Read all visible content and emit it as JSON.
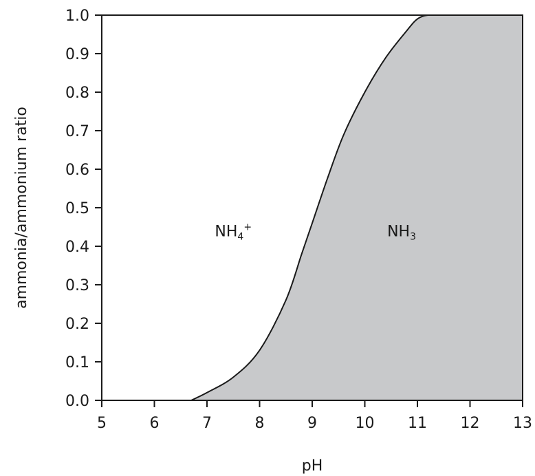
{
  "chart_data": {
    "type": "area",
    "xlabel": "pH",
    "ylabel": "ammonia/ammonium ratio",
    "xlim": [
      5,
      13
    ],
    "ylim": [
      0.0,
      1.0
    ],
    "x_ticks": [
      "5",
      "6",
      "7",
      "8",
      "9",
      "10",
      "11",
      "12",
      "13"
    ],
    "y_ticks": [
      "0.0",
      "0.1",
      "0.2",
      "0.3",
      "0.4",
      "0.5",
      "0.6",
      "0.7",
      "0.8",
      "0.9",
      "1.0"
    ],
    "grid": false,
    "series": [
      {
        "x": [
          6.7,
          7.0,
          7.5,
          8.0,
          8.5,
          8.8,
          9.0,
          9.3,
          9.6,
          10.0,
          10.4,
          10.8,
          11.0,
          11.2,
          11.5,
          12.0,
          13.0
        ],
        "y": [
          0.0,
          0.02,
          0.06,
          0.13,
          0.26,
          0.38,
          0.46,
          0.58,
          0.69,
          0.8,
          0.89,
          0.96,
          0.99,
          1.0,
          1.0,
          1.0,
          1.0
        ]
      }
    ],
    "fill_color": "#c8c9cb",
    "line_color": "#1a1a1a",
    "annotations": [
      {
        "base": "NH",
        "sub": "4",
        "sup": "+",
        "x": 7.5,
        "y": 0.44
      },
      {
        "base": "NH",
        "sub": "3",
        "sup": "",
        "x": 10.7,
        "y": 0.44
      }
    ]
  }
}
